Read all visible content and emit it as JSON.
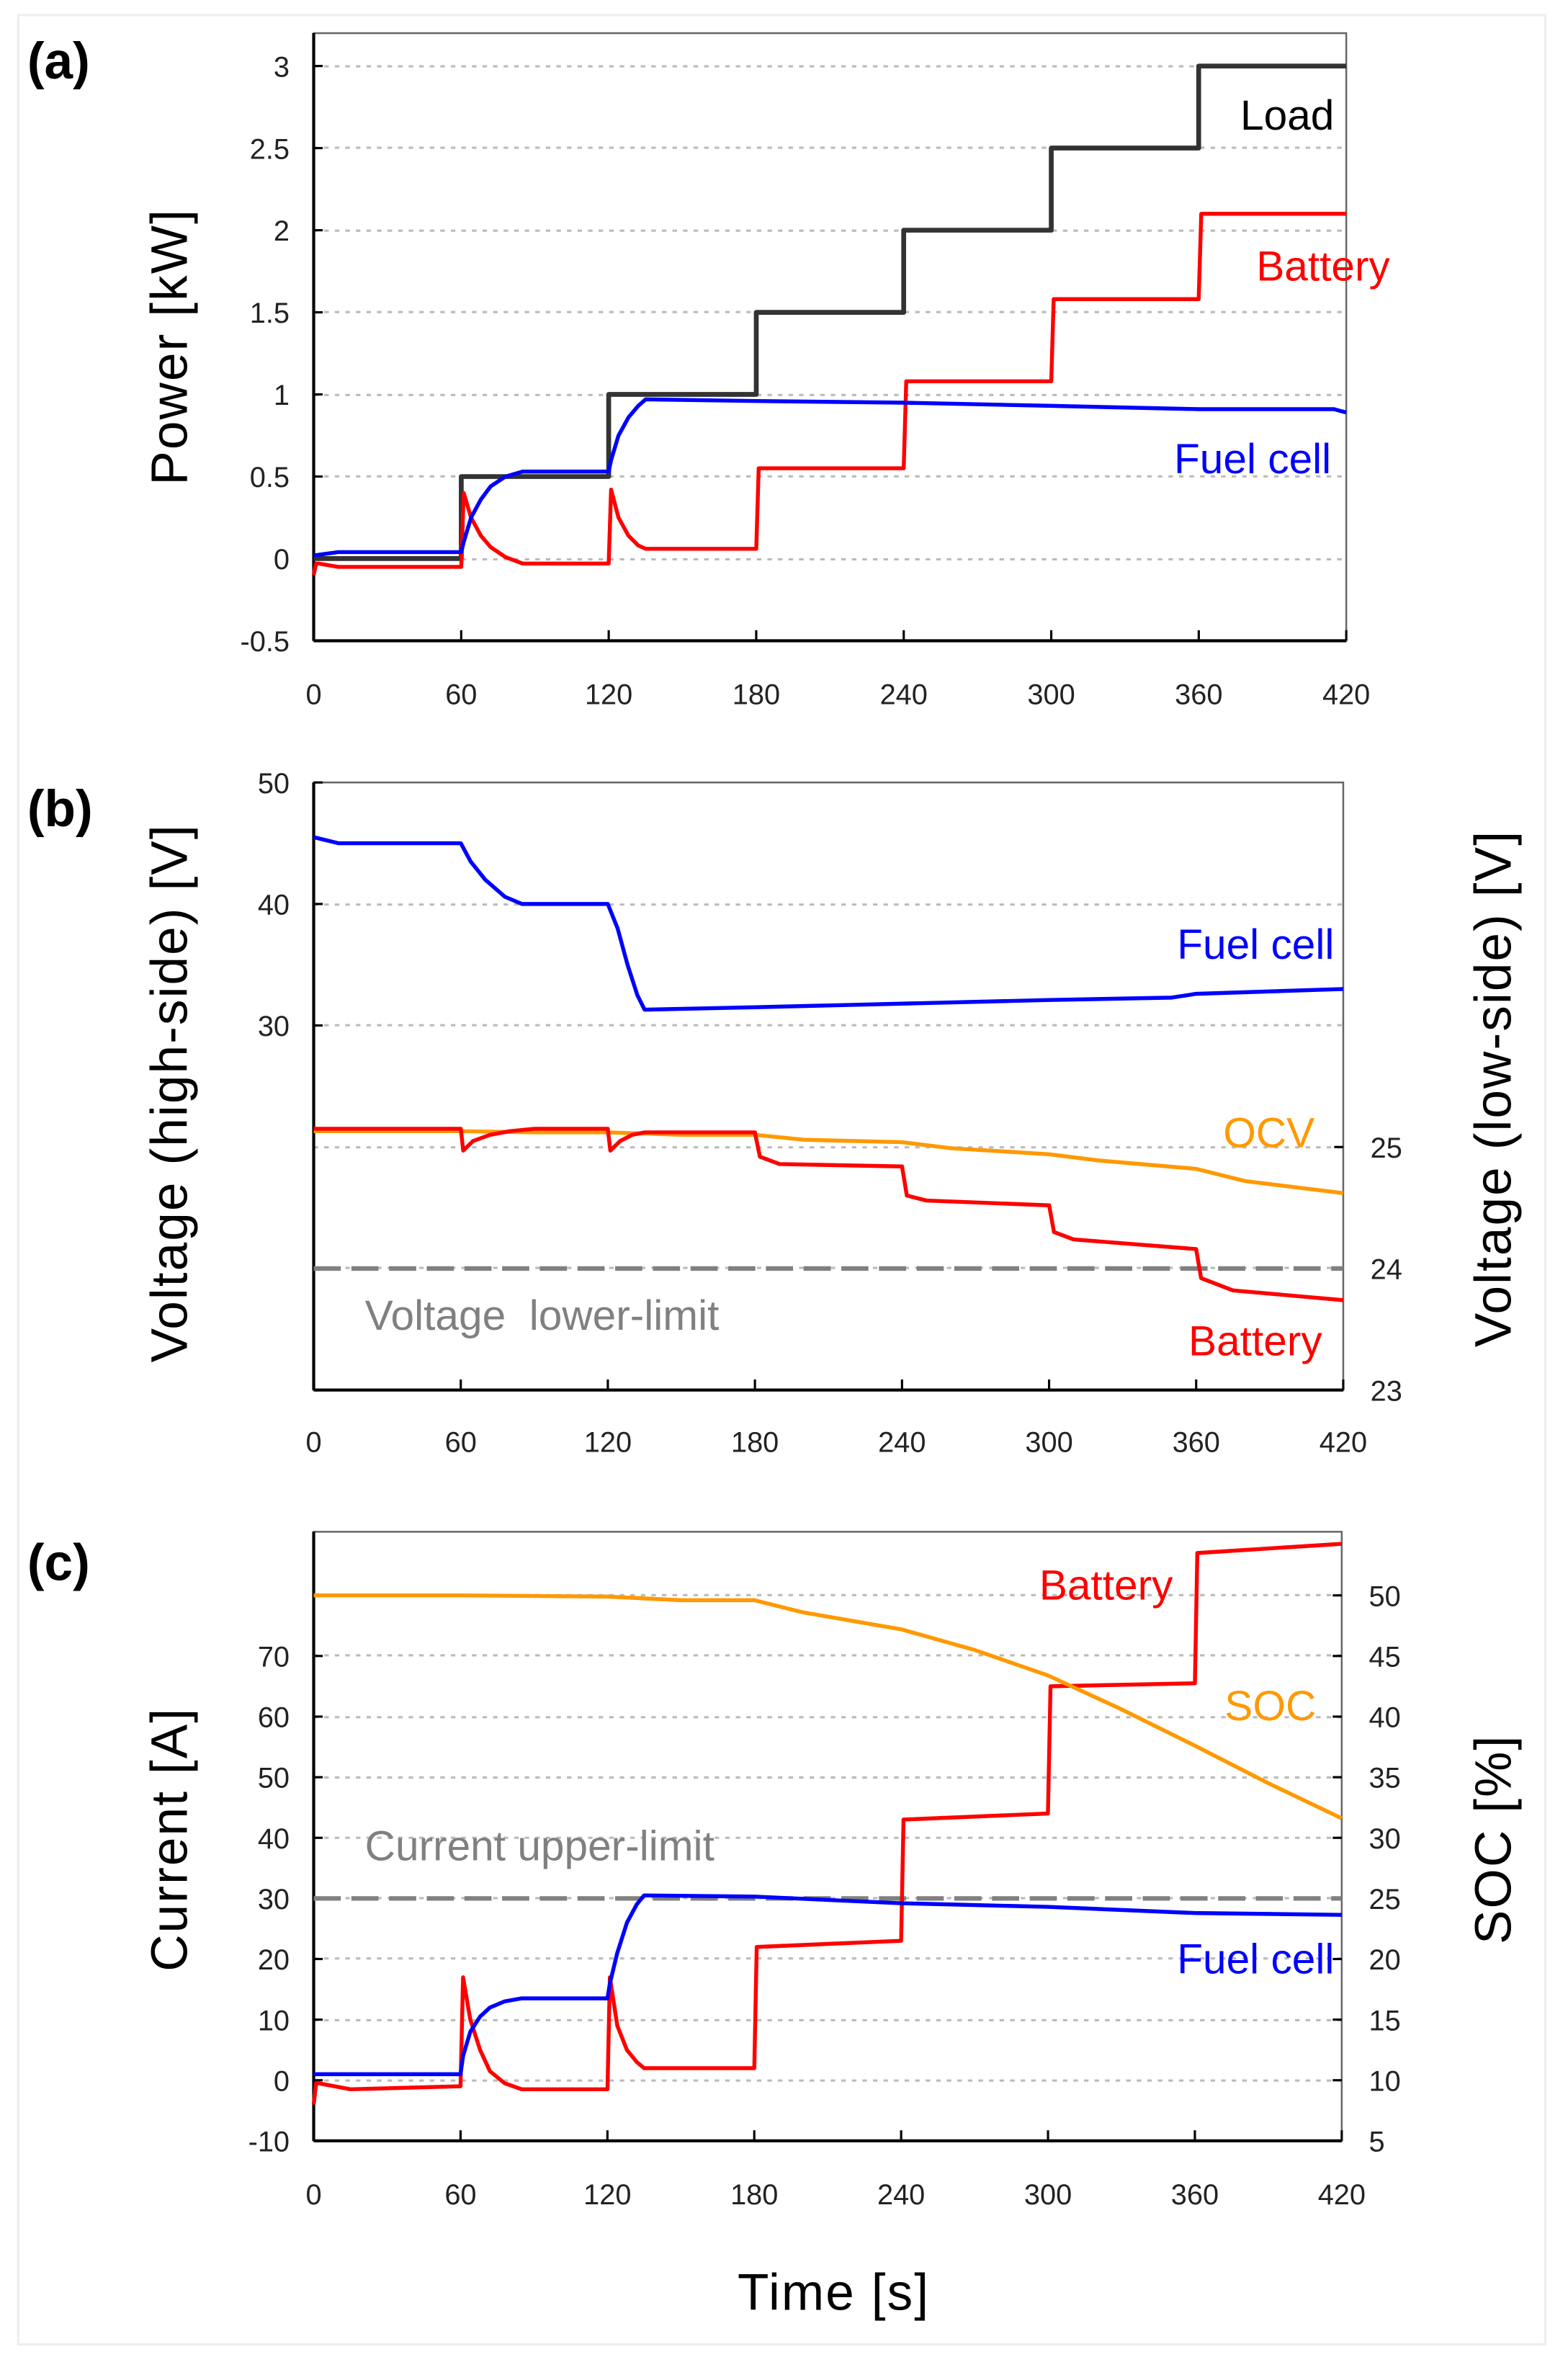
{
  "colors": {
    "load": "#333333",
    "battery": "#ff0000",
    "fuel_cell": "#0000ff",
    "ocv": "#ff9900",
    "soc": "#ff9900",
    "limit": "#808080",
    "grid": "#bbbbbb"
  },
  "chart_data": [
    {
      "type": "line",
      "panel": "(a)",
      "ylabel": "Power [kW]",
      "xlabel": "",
      "xlim": [
        0,
        420
      ],
      "ylim": [
        -0.5,
        3.2
      ],
      "xticks": [
        "0",
        "60",
        "120",
        "180",
        "240",
        "300",
        "360",
        "420"
      ],
      "yticks": [
        "-0.5",
        "0",
        "0.5",
        "1",
        "1.5",
        "2",
        "2.5",
        "3"
      ],
      "grid": true,
      "series": [
        {
          "name": "Load",
          "color": "#333333",
          "x": [
            0,
            60,
            60,
            120,
            120,
            180,
            180,
            240,
            240,
            300,
            300,
            360,
            360,
            420
          ],
          "y": [
            0,
            0,
            0.5,
            0.5,
            1,
            1,
            1.5,
            1.5,
            2,
            2,
            2.5,
            2.5,
            3,
            3
          ]
        },
        {
          "name": "Battery",
          "color": "#ff0000",
          "x": [
            0,
            1,
            2,
            10,
            60,
            61,
            64,
            68,
            72,
            78,
            85,
            120,
            121,
            124,
            128,
            132,
            135,
            180,
            181,
            240,
            241,
            300,
            301,
            360,
            361,
            420
          ],
          "y": [
            -0.1,
            -0.03,
            -0.03,
            -0.05,
            -0.05,
            0.4,
            0.25,
            0.14,
            0.07,
            0.01,
            -0.03,
            -0.03,
            0.42,
            0.25,
            0.14,
            0.08,
            0.06,
            0.06,
            0.55,
            0.55,
            1.08,
            1.08,
            1.58,
            1.58,
            2.1,
            2.1
          ]
        },
        {
          "name": "Fuel cell",
          "color": "#0000ff",
          "x": [
            0,
            10,
            60,
            61,
            64,
            68,
            72,
            78,
            85,
            120,
            121,
            124,
            128,
            132,
            135,
            180,
            240,
            300,
            360,
            415,
            420
          ],
          "y": [
            0.02,
            0.04,
            0.04,
            0.1,
            0.25,
            0.36,
            0.44,
            0.5,
            0.53,
            0.53,
            0.6,
            0.75,
            0.86,
            0.93,
            0.97,
            0.96,
            0.95,
            0.93,
            0.91,
            0.91,
            0.89
          ]
        }
      ],
      "annotations": [
        "Load",
        "Battery",
        "Fuel cell"
      ]
    },
    {
      "type": "line",
      "panel": "(b)",
      "ylabel": "Voltage (high-side) [V]",
      "y2label": "Voltage (low-side) [V]",
      "xlim": [
        0,
        420
      ],
      "ylim": [
        0,
        50
      ],
      "y2lim": [
        23,
        28
      ],
      "xticks": [
        "0",
        "60",
        "120",
        "180",
        "240",
        "300",
        "360",
        "420"
      ],
      "yticks": [
        "30",
        "40",
        "50"
      ],
      "y2ticks": [
        "23",
        "24",
        "25"
      ],
      "grid": true,
      "series": [
        {
          "name": "Fuel cell",
          "axis": "left",
          "color": "#0000ff",
          "x": [
            0,
            10,
            60,
            64,
            70,
            78,
            85,
            120,
            124,
            128,
            132,
            135,
            180,
            240,
            300,
            350,
            360,
            420
          ],
          "y": [
            45.5,
            45,
            45,
            43.5,
            42,
            40.6,
            40,
            40,
            38,
            35,
            32.5,
            31.3,
            31.5,
            31.8,
            32.1,
            32.3,
            32.6,
            33
          ]
        },
        {
          "name": "OCV",
          "axis": "right",
          "color": "#ff9900",
          "x": [
            0,
            60,
            90,
            120,
            150,
            180,
            200,
            240,
            260,
            300,
            320,
            360,
            380,
            420
          ],
          "y": [
            25.13,
            25.13,
            25.12,
            25.12,
            25.1,
            25.1,
            25.06,
            25.04,
            24.99,
            24.94,
            24.89,
            24.82,
            24.72,
            24.62
          ]
        },
        {
          "name": "Battery",
          "axis": "right",
          "color": "#ff0000",
          "x": [
            0,
            60,
            61,
            65,
            72,
            80,
            90,
            120,
            121,
            125,
            130,
            135,
            180,
            182,
            190,
            240,
            242,
            250,
            300,
            302,
            310,
            360,
            362,
            375,
            420
          ],
          "y": [
            25.15,
            25.15,
            24.97,
            25.05,
            25.1,
            25.13,
            25.15,
            25.15,
            24.97,
            25.05,
            25.1,
            25.12,
            25.12,
            24.92,
            24.86,
            24.84,
            24.6,
            24.56,
            24.52,
            24.3,
            24.24,
            24.16,
            23.92,
            23.82,
            23.74
          ]
        }
      ],
      "limit_line": {
        "label": "Voltage  lower-limit",
        "value": 24,
        "axis": "right"
      },
      "annotations": [
        "Fuel cell",
        "OCV",
        "Battery"
      ]
    },
    {
      "type": "line",
      "panel": "(c)",
      "ylabel": "Current [A]",
      "y2label": "SOC [%]",
      "xlabel": "Time [s]",
      "xlim": [
        0,
        420
      ],
      "ylim": [
        -10,
        90.5
      ],
      "y2lim": [
        5,
        55.25
      ],
      "xticks": [
        "0",
        "60",
        "120",
        "180",
        "240",
        "300",
        "360",
        "420"
      ],
      "yticks": [
        "-10",
        "0",
        "10",
        "20",
        "30",
        "40",
        "50",
        "60",
        "70"
      ],
      "y2ticks": [
        "5",
        "10",
        "15",
        "20",
        "25",
        "30",
        "35",
        "40",
        "45",
        "50"
      ],
      "grid": true,
      "series": [
        {
          "name": "Battery",
          "axis": "left",
          "color": "#ff0000",
          "x": [
            0,
            1,
            2,
            15,
            60,
            61,
            64,
            68,
            72,
            78,
            85,
            120,
            121,
            124,
            128,
            132,
            135,
            180,
            181,
            240,
            241,
            300,
            301,
            360,
            361,
            420
          ],
          "y": [
            -4,
            -0.5,
            -0.5,
            -1.5,
            -1,
            17,
            10,
            5,
            1.5,
            -0.5,
            -1.5,
            -1.5,
            17,
            9,
            5,
            3,
            2,
            2,
            22,
            23,
            43,
            44,
            65,
            65.5,
            87,
            88.5
          ]
        },
        {
          "name": "Fuel cell",
          "axis": "left",
          "color": "#0000ff",
          "x": [
            0,
            60,
            61,
            64,
            68,
            72,
            78,
            85,
            120,
            121,
            124,
            128,
            132,
            135,
            180,
            240,
            300,
            360,
            420
          ],
          "y": [
            1,
            1,
            4,
            8,
            10.5,
            12,
            13,
            13.5,
            13.5,
            16,
            21,
            26,
            29,
            30.5,
            30.3,
            29.2,
            28.6,
            27.6,
            27.3
          ]
        },
        {
          "name": "SOC",
          "axis": "right",
          "color": "#ff9900",
          "x": [
            0,
            60,
            120,
            150,
            180,
            200,
            240,
            270,
            300,
            330,
            360,
            390,
            420
          ],
          "y": [
            50,
            50,
            49.9,
            49.6,
            49.6,
            48.6,
            47.2,
            45.5,
            43.4,
            40.6,
            37.6,
            34.5,
            31.6
          ]
        }
      ],
      "limit_line": {
        "label": "Current upper-limit",
        "value": 30,
        "axis": "left"
      },
      "annotations": [
        "Battery",
        "SOC",
        "Fuel cell"
      ]
    }
  ]
}
